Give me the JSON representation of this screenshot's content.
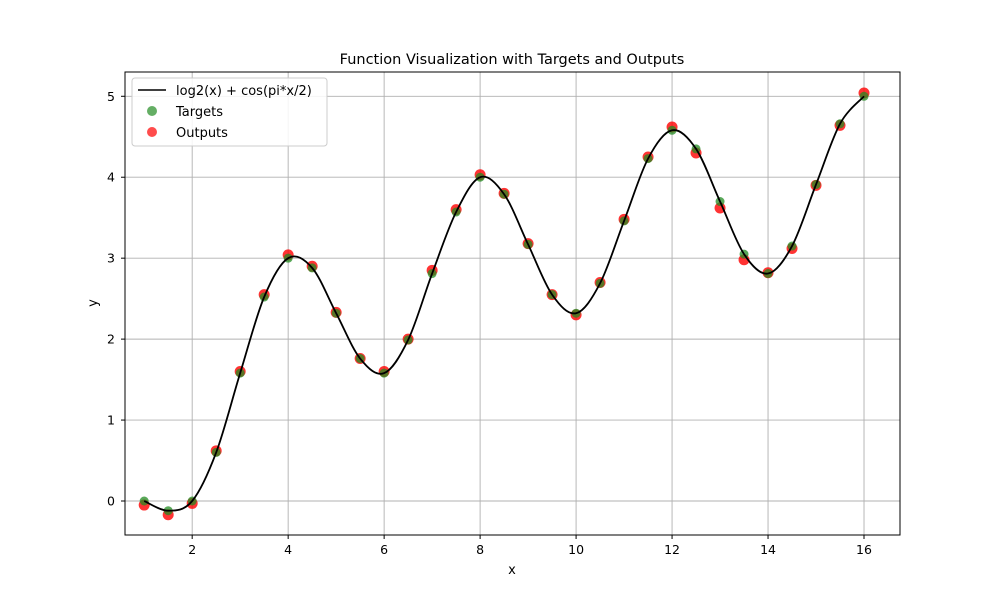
{
  "chart_data": {
    "type": "line",
    "title": "Function Visualization with Targets and Outputs",
    "xlabel": "x",
    "ylabel": "y",
    "xlim": [
      0.6,
      16.75
    ],
    "ylim": [
      -0.42,
      5.3
    ],
    "xticks": [
      2,
      4,
      6,
      8,
      10,
      12,
      14,
      16
    ],
    "yticks": [
      0,
      1,
      2,
      3,
      4,
      5
    ],
    "xtick_labels": [
      "2",
      "4",
      "6",
      "8",
      "10",
      "12",
      "14",
      "16"
    ],
    "ytick_labels": [
      "0",
      "1",
      "2",
      "3",
      "4",
      "5"
    ],
    "grid": true,
    "legend_position": "top-left",
    "colors": {
      "function": "#000000",
      "targets": "#228b22",
      "outputs": "#ff0000",
      "grid": "#b0b0b0"
    },
    "x": [
      1,
      1.5,
      2,
      2.5,
      3,
      3.5,
      4,
      4.5,
      5,
      5.5,
      6,
      6.5,
      7,
      7.5,
      8,
      8.5,
      9,
      9.5,
      10,
      10.5,
      11,
      11.5,
      12,
      12.5,
      13,
      13.5,
      14,
      14.5,
      15,
      15.5,
      16
    ],
    "series": [
      {
        "name": "log2(x) + cos(pi*x/2)",
        "kind": "line",
        "values": [
          0.0,
          -0.12,
          0.0,
          0.6,
          1.58,
          2.52,
          3.0,
          2.88,
          2.32,
          1.76,
          1.58,
          1.99,
          2.81,
          3.57,
          4.0,
          3.79,
          3.17,
          2.55,
          2.32,
          2.69,
          3.46,
          4.23,
          4.58,
          4.35,
          3.7,
          3.05,
          2.81,
          3.15,
          3.91,
          4.66,
          5.0
        ]
      },
      {
        "name": "Targets",
        "kind": "scatter",
        "values": [
          0.0,
          -0.12,
          0.0,
          0.6,
          1.58,
          2.52,
          3.0,
          2.88,
          2.32,
          1.76,
          1.58,
          1.99,
          2.81,
          3.57,
          4.0,
          3.79,
          3.17,
          2.55,
          2.32,
          2.69,
          3.46,
          4.23,
          4.58,
          4.35,
          3.7,
          3.05,
          2.81,
          3.15,
          3.91,
          4.66,
          5.0
        ]
      },
      {
        "name": "Outputs",
        "kind": "scatter",
        "values": [
          -0.05,
          -0.17,
          -0.03,
          0.62,
          1.6,
          2.55,
          3.04,
          2.9,
          2.33,
          1.76,
          1.6,
          2.0,
          2.85,
          3.6,
          4.03,
          3.8,
          3.18,
          2.55,
          2.3,
          2.7,
          3.48,
          4.25,
          4.62,
          4.3,
          3.62,
          2.98,
          2.82,
          3.12,
          3.9,
          4.64,
          5.04
        ]
      }
    ]
  }
}
